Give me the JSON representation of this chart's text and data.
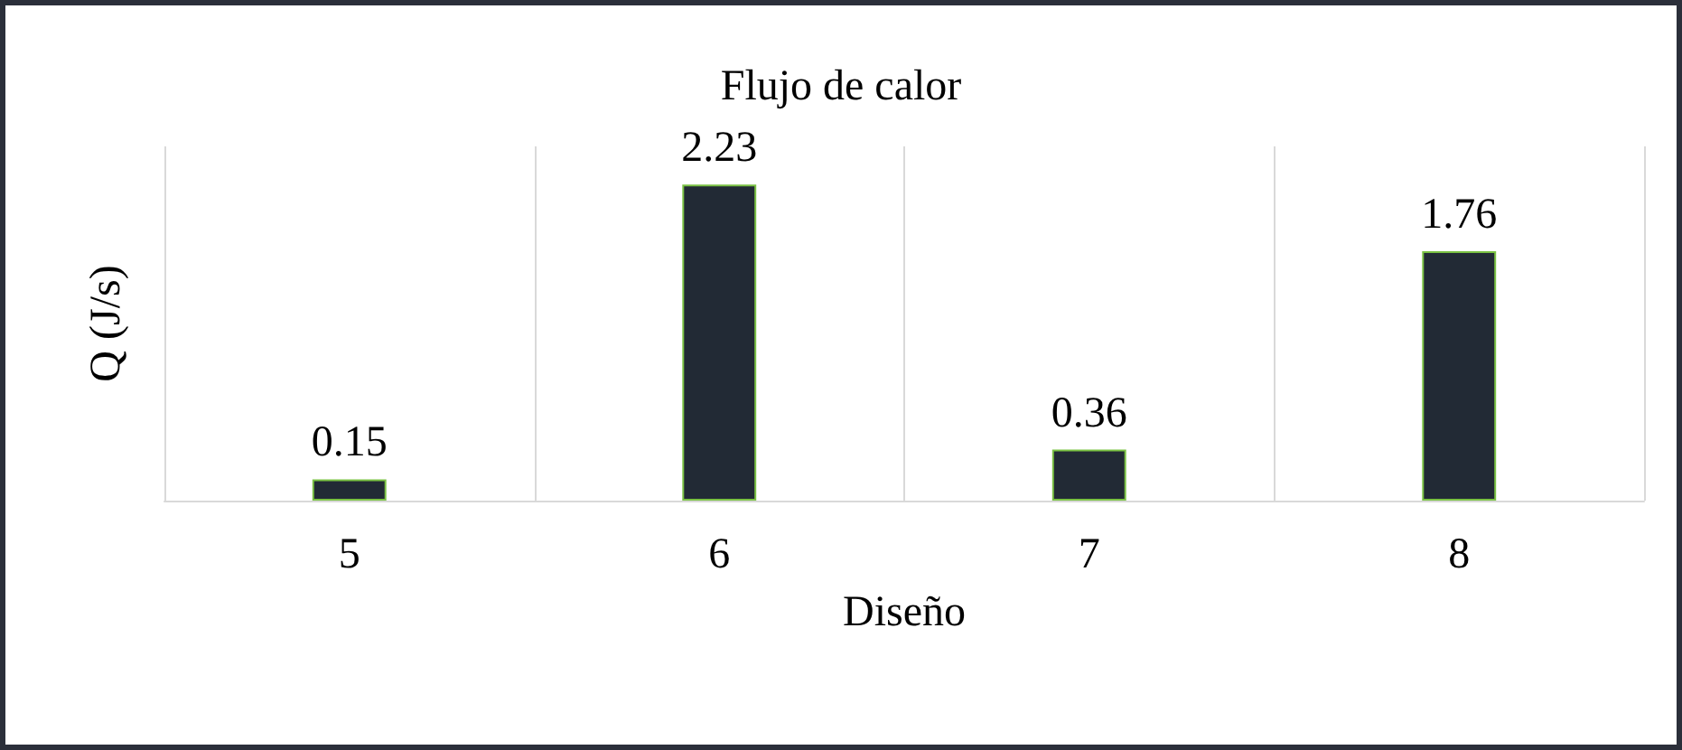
{
  "chart_data": {
    "type": "bar",
    "title": "Flujo de calor",
    "xlabel": "Diseño",
    "ylabel": "Q (J/s)",
    "categories": [
      "5",
      "6",
      "7",
      "8"
    ],
    "values": [
      0.15,
      2.23,
      0.36,
      1.76
    ],
    "color": "#222a35",
    "data_labels": true,
    "grid": "x"
  }
}
